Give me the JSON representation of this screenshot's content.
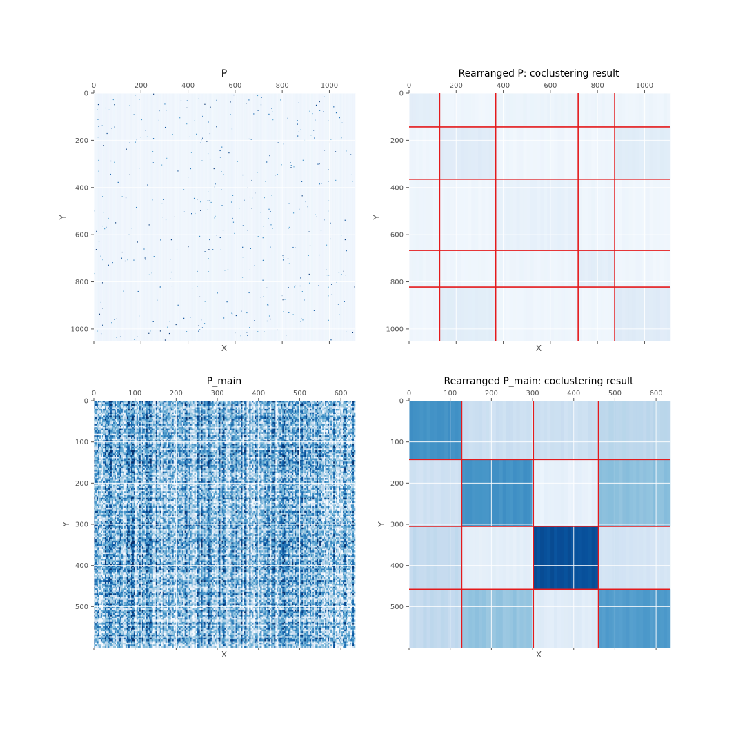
{
  "colors": {
    "cmap_light": "#f7fbff",
    "cmap_dark": "#08306b",
    "grid": "#ffffff",
    "boundary": "#e41a1c",
    "tick": "#555555",
    "title": "#000000"
  },
  "chart_data": [
    {
      "id": "P",
      "type": "heatmap",
      "title": "P",
      "xlabel": "X",
      "ylabel": "Y",
      "xlim": [
        0,
        1110
      ],
      "ylim": [
        1050,
        0
      ],
      "xticks": [
        0,
        200,
        400,
        600,
        800,
        1000
      ],
      "yticks": [
        0,
        200,
        400,
        600,
        800,
        1000
      ],
      "x_axis_position": "top",
      "grid": true,
      "pattern": "sparse",
      "mean_intensity": 0.06,
      "noise": 0.04,
      "col_boundaries": [],
      "row_boundaries": [],
      "blocks": []
    },
    {
      "id": "P_rearranged",
      "type": "heatmap",
      "title": "Rearranged P: coclustering result",
      "xlabel": "X",
      "ylabel": "Y",
      "xlim": [
        0,
        1110
      ],
      "ylim": [
        1050,
        0
      ],
      "xticks": [
        0,
        200,
        400,
        600,
        800,
        1000
      ],
      "yticks": [
        0,
        200,
        400,
        600,
        800,
        1000
      ],
      "x_axis_position": "top",
      "grid": true,
      "pattern": "blocks",
      "noise": 0.015,
      "col_boundaries": [
        130,
        368,
        718,
        873
      ],
      "row_boundaries": [
        143,
        365,
        667,
        822
      ],
      "blocks": [
        [
          0.1,
          0.04,
          0.06,
          0.05,
          0.05
        ],
        [
          0.04,
          0.12,
          0.04,
          0.04,
          0.11
        ],
        [
          0.05,
          0.04,
          0.08,
          0.05,
          0.04
        ],
        [
          0.05,
          0.04,
          0.05,
          0.1,
          0.04
        ],
        [
          0.04,
          0.11,
          0.04,
          0.04,
          0.12
        ]
      ]
    },
    {
      "id": "P_main",
      "type": "heatmap",
      "title": "P_main",
      "xlabel": "X",
      "ylabel": "Y",
      "xlim": [
        0,
        635
      ],
      "ylim": [
        600,
        0
      ],
      "xticks": [
        0,
        100,
        200,
        300,
        400,
        500,
        600
      ],
      "yticks": [
        0,
        100,
        200,
        300,
        400,
        500
      ],
      "x_axis_position": "top",
      "grid": true,
      "pattern": "dense",
      "mean_intensity": 0.45,
      "noise": 0.35,
      "col_boundaries": [],
      "row_boundaries": [],
      "blocks": []
    },
    {
      "id": "P_main_rearranged",
      "type": "heatmap",
      "title": "Rearranged P_main: coclustering result",
      "xlabel": "X",
      "ylabel": "Y",
      "xlim": [
        0,
        635
      ],
      "ylim": [
        600,
        0
      ],
      "xticks": [
        0,
        100,
        200,
        300,
        400,
        500,
        600
      ],
      "yticks": [
        0,
        100,
        200,
        300,
        400,
        500
      ],
      "x_axis_position": "top",
      "grid": true,
      "pattern": "blocks",
      "noise": 0.03,
      "col_boundaries": [
        128,
        302,
        460
      ],
      "row_boundaries": [
        143,
        305,
        458
      ],
      "blocks": [
        [
          0.62,
          0.22,
          0.22,
          0.28
        ],
        [
          0.2,
          0.62,
          0.08,
          0.42
        ],
        [
          0.26,
          0.1,
          0.88,
          0.18
        ],
        [
          0.26,
          0.4,
          0.12,
          0.58
        ]
      ]
    }
  ]
}
